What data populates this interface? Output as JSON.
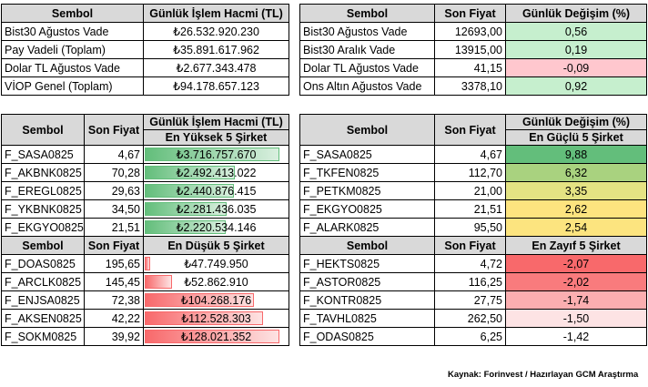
{
  "top_left": {
    "headers": [
      "Sembol",
      "Günlük İşlem Hacmi (TL)"
    ],
    "rows": [
      [
        "Bist30 Ağustos Vade",
        "₺26.532.920.230"
      ],
      [
        "Pay Vadeli (Toplam)",
        "₺35.891.617.962"
      ],
      [
        "Dolar TL Ağustos Vade",
        "₺2.677.343.478"
      ],
      [
        "VİOP Genel (Toplam)",
        "₺94.178.657.123"
      ]
    ]
  },
  "top_right": {
    "headers": [
      "Sembol",
      "Son Fiyat",
      "Günlük Değişim (%)"
    ],
    "rows": [
      [
        "Bist30 Ağustos Vade",
        "12693,00",
        "0,56"
      ],
      [
        "Bist30 Aralık Vade",
        "13915,00",
        "0,19"
      ],
      [
        "Dolar TL Ağustos Vade",
        "41,15",
        "-0,09"
      ],
      [
        "Ons Altın Ağustos Vade",
        "3378,10",
        "0,92"
      ]
    ],
    "change_colors": [
      "#c6efce",
      "#c6efce",
      "#ffc7ce",
      "#c6efce"
    ]
  },
  "volume_table": {
    "headers": [
      "Sembol",
      "Son Fiyat",
      "Günlük İşlem Hacmi (TL)"
    ],
    "highest_title": "En Yüksek 5 Şirket",
    "highest": [
      {
        "symbol": "F_SASA0825",
        "price": "4,67",
        "volume": "₺3.716.757.670",
        "fill": 1.0
      },
      {
        "symbol": "F_AKBNK0825",
        "price": "70,28",
        "volume": "₺2.492.413.022",
        "fill": 0.67
      },
      {
        "symbol": "F_EREGL0825",
        "price": "29,63",
        "volume": "₺2.440.876.415",
        "fill": 0.66
      },
      {
        "symbol": "F_YKBNK0825",
        "price": "34,50",
        "volume": "₺2.281.436.035",
        "fill": 0.61
      },
      {
        "symbol": "F_EKGYO0825",
        "price": "21,51",
        "volume": "₺2.220.534.146",
        "fill": 0.6
      }
    ],
    "lowest_headers": [
      "Sembol",
      "Son Fiyat"
    ],
    "lowest_title": "En Düşük 5 Şirket",
    "lowest": [
      {
        "symbol": "F_DOAS0825",
        "price": "195,65",
        "volume": "₺47.749.950",
        "fill": 0.04
      },
      {
        "symbol": "F_ARCLK0825",
        "price": "145,45",
        "volume": "₺52.862.910",
        "fill": 0.2
      },
      {
        "symbol": "F_ENJSA0825",
        "price": "72,38",
        "volume": "₺104.268.176",
        "fill": 0.81
      },
      {
        "symbol": "F_AKSEN0825",
        "price": "42,22",
        "volume": "₺112.528.303",
        "fill": 0.88
      },
      {
        "symbol": "F_SOKM0825",
        "price": "39,92",
        "volume": "₺128.021.352",
        "fill": 1.0
      }
    ]
  },
  "change_table": {
    "headers": [
      "Sembol",
      "Son Fiyat",
      "Günlük Değişim (%)"
    ],
    "strongest_title": "En Güçlü 5 Şirket",
    "strongest": [
      {
        "symbol": "F_SASA0825",
        "price": "4,67",
        "change": "9,88",
        "color": "#63be7b"
      },
      {
        "symbol": "F_TKFEN0825",
        "price": "112,70",
        "change": "6,32",
        "color": "#a9d27f"
      },
      {
        "symbol": "F_PETKM0825",
        "price": "21,00",
        "change": "3,35",
        "color": "#e4e383"
      },
      {
        "symbol": "F_EKGYO0825",
        "price": "21,51",
        "change": "2,62",
        "color": "#fde47f"
      },
      {
        "symbol": "F_ALARK0825",
        "price": "95,50",
        "change": "2,54",
        "color": "#fce47f"
      }
    ],
    "weakest_headers": [
      "Sembol",
      "Son Fiyat"
    ],
    "weakest_title": "En Zayıf 5 Şirket",
    "weakest": [
      {
        "symbol": "F_HEKTS0825",
        "price": "4,72",
        "change": "-2,07",
        "color": "#f8696b"
      },
      {
        "symbol": "F_ASTOR0825",
        "price": "116,25",
        "change": "-2,02",
        "color": "#f97b7d"
      },
      {
        "symbol": "F_KONTR0825",
        "price": "27,75",
        "change": "-1,74",
        "color": "#fbaeb0"
      },
      {
        "symbol": "F_TAVHL0825",
        "price": "262,50",
        "change": "-1,50",
        "color": "#fde3e4"
      },
      {
        "symbol": "F_ODAS0825",
        "price": "6,25",
        "change": "-1,42",
        "color": "#ffffff"
      }
    ]
  },
  "source": "Kaynak: Forinvest / Hazırlayan GCM Araştırma"
}
